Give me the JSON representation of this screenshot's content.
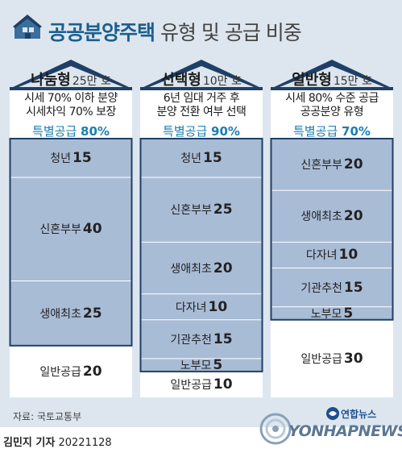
{
  "header": {
    "title_bold": "공공분양주택",
    "title_light": "유형 및 공급 비중"
  },
  "chart_data": {
    "type": "bar",
    "title": "공공분양주택 유형 및 공급 비중",
    "stacked": true,
    "unit": "%",
    "ylim": [
      0,
      100
    ],
    "columns": [
      {
        "name": "나눔형",
        "units": "25만 호",
        "desc": [
          "시세 70% 이하 분양",
          "시세차익 70% 보장"
        ],
        "special_label": "특별공급",
        "special_value": "80%",
        "segments": [
          {
            "label": "청년",
            "value": 15,
            "special": true
          },
          {
            "label": "신혼부부",
            "value": 40,
            "special": true
          },
          {
            "label": "생애최초",
            "value": 25,
            "special": true
          },
          {
            "label": "일반공급",
            "value": 20,
            "special": false
          }
        ]
      },
      {
        "name": "선택형",
        "units": "10만 호",
        "desc": [
          "6년 임대 거주 후",
          "분양 전환 여부 선택"
        ],
        "special_label": "특별공급",
        "special_value": "90%",
        "segments": [
          {
            "label": "청년",
            "value": 15,
            "special": true
          },
          {
            "label": "신혼부부",
            "value": 25,
            "special": true
          },
          {
            "label": "생애최초",
            "value": 20,
            "special": true
          },
          {
            "label": "다자녀",
            "value": 10,
            "special": true
          },
          {
            "label": "기관추천",
            "value": 15,
            "special": true
          },
          {
            "label": "노부모",
            "value": 5,
            "special": true
          },
          {
            "label": "일반공급",
            "value": 10,
            "special": false
          }
        ]
      },
      {
        "name": "일반형",
        "units": "15만 호",
        "desc": [
          "시세 80% 수준 공급",
          "공공분양 유형"
        ],
        "special_label": "특별공급",
        "special_value": "70%",
        "segments": [
          {
            "label": "신혼부부",
            "value": 20,
            "special": true
          },
          {
            "label": "생애최초",
            "value": 20,
            "special": true
          },
          {
            "label": "다자녀",
            "value": 10,
            "special": true
          },
          {
            "label": "기관추천",
            "value": 15,
            "special": true
          },
          {
            "label": "노부모",
            "value": 5,
            "special": true
          },
          {
            "label": "일반공급",
            "value": 30,
            "special": false
          }
        ]
      }
    ]
  },
  "footer": {
    "source": "자료: 국토교통부",
    "author": "김민지 기자",
    "date": "20221128",
    "logo_kr": "연합뉴스",
    "logo_en": "YONHAPNEWS"
  },
  "colors": {
    "background": "#dde6ee",
    "roof": "#1f3f66",
    "column_fill": "#ffffff",
    "special_fill": "#a9bcd6",
    "special_border": "#1f3f66",
    "accent": "#1b7fb0",
    "title": "#1b5f8f"
  }
}
